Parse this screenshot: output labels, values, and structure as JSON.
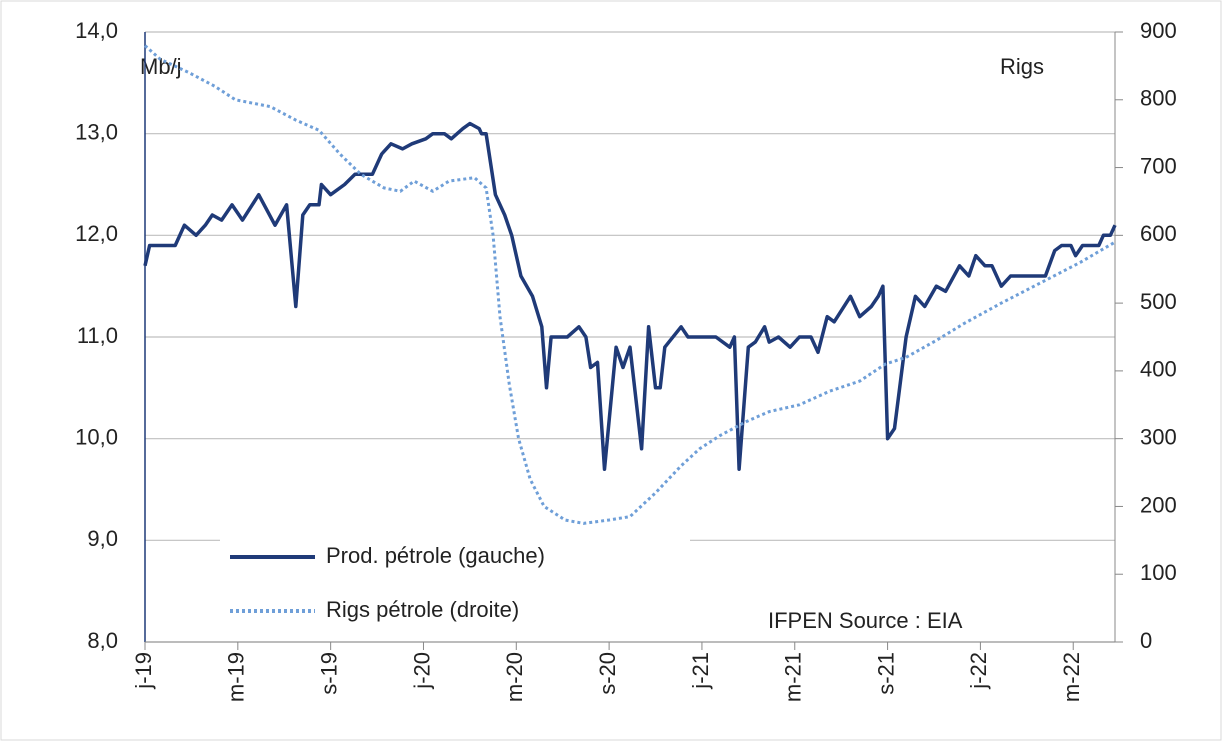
{
  "chart_data": {
    "type": "line",
    "y_label": "Mb/j",
    "y2_label": "Rigs",
    "annotation": "IFPEN Source : EIA",
    "xlim": [
      0,
      41.8
    ],
    "xticks": [
      {
        "value": 0,
        "label": "j-19"
      },
      {
        "value": 4,
        "label": "m-19"
      },
      {
        "value": 8,
        "label": "s-19"
      },
      {
        "value": 12,
        "label": "j-20"
      },
      {
        "value": 16,
        "label": "m-20"
      },
      {
        "value": 20,
        "label": "s-20"
      },
      {
        "value": 24,
        "label": "j-21"
      },
      {
        "value": 28,
        "label": "m-21"
      },
      {
        "value": 32,
        "label": "s-21"
      },
      {
        "value": 36,
        "label": "j-22"
      },
      {
        "value": 40,
        "label": "m-22"
      }
    ],
    "ylim": [
      8,
      14
    ],
    "yticks": [
      {
        "value": 8,
        "label": "8,0"
      },
      {
        "value": 9,
        "label": "9,0"
      },
      {
        "value": 10,
        "label": "10,0"
      },
      {
        "value": 11,
        "label": "11,0"
      },
      {
        "value": 12,
        "label": "12,0"
      },
      {
        "value": 13,
        "label": "13,0"
      },
      {
        "value": 14,
        "label": "14,0"
      }
    ],
    "y2lim": [
      0,
      900
    ],
    "y2ticks": [
      0,
      100,
      200,
      300,
      400,
      500,
      600,
      700,
      800,
      900
    ],
    "grid": true,
    "series": [
      {
        "name": "Prod. pétrole (gauche)",
        "color": "#1f3a78",
        "style": "solid",
        "x": [
          0,
          0.2,
          1.3,
          1.7,
          2.2,
          2.6,
          2.9,
          3.3,
          3.75,
          4.2,
          4.9,
          5.6,
          6.1,
          6.5,
          6.8,
          7.1,
          7.5,
          7.6,
          8.0,
          8.6,
          9.05,
          9.8,
          10.2,
          10.6,
          11.1,
          11.5,
          12.1,
          12.4,
          12.9,
          13.2,
          13.7,
          14.0,
          14.4,
          14.5,
          14.7,
          15.1,
          15.5,
          15.8,
          16.2,
          16.7,
          17.1,
          17.3,
          17.5,
          18.2,
          18.7,
          19.0,
          19.2,
          19.5,
          19.8,
          20.3,
          20.6,
          20.9,
          21.4,
          21.7,
          22.0,
          22.2,
          22.4,
          23.1,
          23.4,
          24.6,
          25.2,
          25.4,
          25.6,
          26.0,
          26.3,
          26.7,
          26.9,
          27.3,
          27.8,
          28.2,
          28.7,
          29.0,
          29.4,
          29.7,
          30.4,
          30.8,
          31.3,
          31.6,
          31.8,
          32.0,
          32.3,
          32.8,
          33.2,
          33.6,
          34.1,
          34.5,
          35.1,
          35.5,
          35.8,
          36.2,
          36.5,
          36.9,
          37.3,
          38.8,
          39.2,
          39.5,
          39.9,
          40.1,
          40.4,
          41.1,
          41.3,
          41.6,
          41.8
        ],
        "values": [
          11.7,
          11.9,
          11.9,
          12.1,
          12.0,
          12.1,
          12.2,
          12.15,
          12.3,
          12.15,
          12.4,
          12.1,
          12.3,
          11.3,
          12.2,
          12.3,
          12.3,
          12.5,
          12.4,
          12.5,
          12.6,
          12.6,
          12.8,
          12.9,
          12.85,
          12.9,
          12.95,
          13.0,
          13.0,
          12.95,
          13.05,
          13.1,
          13.05,
          13.0,
          13.0,
          12.4,
          12.2,
          12.0,
          11.6,
          11.4,
          11.1,
          10.5,
          11.0,
          11.0,
          11.1,
          11.0,
          10.7,
          10.75,
          9.7,
          10.9,
          10.7,
          10.9,
          9.9,
          11.1,
          10.5,
          10.5,
          10.9,
          11.1,
          11.0,
          11.0,
          10.9,
          11.0,
          9.7,
          10.9,
          10.95,
          11.1,
          10.95,
          11.0,
          10.9,
          11.0,
          11.0,
          10.85,
          11.2,
          11.15,
          11.4,
          11.2,
          11.3,
          11.4,
          11.5,
          10.0,
          10.1,
          11.0,
          11.4,
          11.3,
          11.5,
          11.45,
          11.7,
          11.6,
          11.8,
          11.7,
          11.7,
          11.5,
          11.6,
          11.6,
          11.85,
          11.9,
          11.9,
          11.8,
          11.9,
          11.9,
          12.0,
          12.0,
          12.1
        ]
      },
      {
        "name": "Rigs pétrole (droite)",
        "color": "#6f9fd8",
        "style": "dotted",
        "axis": "y2",
        "x": [
          0,
          0.65,
          1.9,
          3.0,
          3.9,
          5.4,
          6.5,
          7.5,
          8.4,
          9.3,
          10.3,
          11.0,
          11.6,
          12.4,
          13.1,
          14.2,
          14.7,
          15.0,
          15.3,
          15.7,
          16.1,
          16.6,
          17.2,
          18.1,
          18.9,
          20.0,
          20.9,
          22.0,
          23.1,
          23.9,
          24.8,
          25.9,
          26.9,
          28.2,
          29.5,
          30.8,
          31.9,
          32.8,
          34.1,
          35.3,
          36.9,
          38.6,
          40.3,
          41.8
        ],
        "values": [
          880,
          860,
          840,
          820,
          800,
          790,
          770,
          755,
          720,
          690,
          670,
          665,
          680,
          665,
          680,
          685,
          670,
          600,
          480,
          380,
          300,
          240,
          200,
          180,
          175,
          180,
          185,
          220,
          260,
          285,
          305,
          325,
          340,
          350,
          370,
          385,
          410,
          420,
          445,
          470,
          500,
          530,
          560,
          590
        ]
      }
    ]
  }
}
